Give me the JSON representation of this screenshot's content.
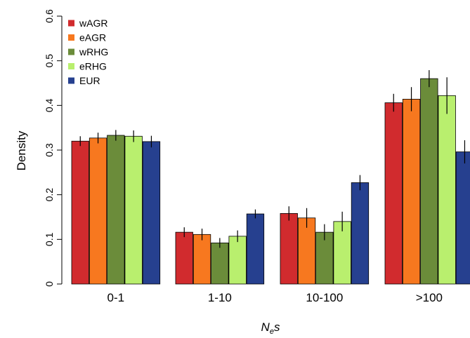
{
  "chart_data": {
    "type": "bar",
    "ylabel": "Density",
    "xlabel": {
      "main": "N",
      "subscript": "e",
      "suffix": "s"
    },
    "categories": [
      "0-1",
      "1-10",
      "10-100",
      ">100"
    ],
    "ylim": [
      0,
      0.6
    ],
    "yticks": [
      "0",
      "0.1",
      "0.2",
      "0.3",
      "0.4",
      "0.5",
      "0.6"
    ],
    "grid": false,
    "legend_position": "top-left",
    "series": [
      {
        "name": "wAGR",
        "color": "#d12b2e",
        "values": [
          0.32,
          0.116,
          0.158,
          0.406
        ],
        "errors": [
          0.011,
          0.011,
          0.016,
          0.02
        ]
      },
      {
        "name": "eAGR",
        "color": "#f7781f",
        "values": [
          0.327,
          0.111,
          0.148,
          0.414
        ],
        "errors": [
          0.012,
          0.013,
          0.022,
          0.027
        ]
      },
      {
        "name": "wRHG",
        "color": "#6b8c3a",
        "values": [
          0.333,
          0.092,
          0.116,
          0.46
        ],
        "errors": [
          0.012,
          0.011,
          0.018,
          0.019
        ]
      },
      {
        "name": "eRHG",
        "color": "#b9ef6e",
        "values": [
          0.331,
          0.107,
          0.14,
          0.422
        ],
        "errors": [
          0.013,
          0.013,
          0.022,
          0.041
        ]
      },
      {
        "name": "EUR",
        "color": "#26408f",
        "values": [
          0.319,
          0.157,
          0.227,
          0.296
        ],
        "errors": [
          0.013,
          0.01,
          0.017,
          0.026
        ]
      }
    ]
  }
}
